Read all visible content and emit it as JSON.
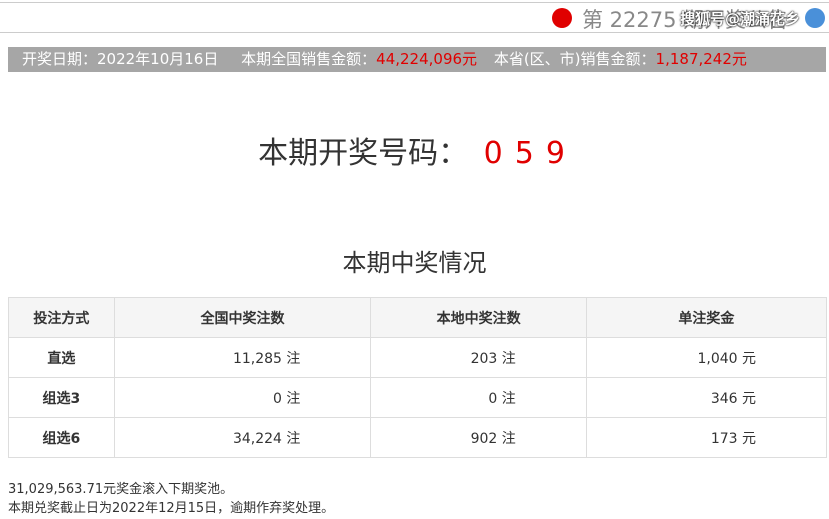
{
  "header": {
    "title": "第 22275 期开奖公告",
    "watermark": "搜狐号@潮涌花乡"
  },
  "info": {
    "date": "开奖日期：2022年10月16日",
    "national_label": "本期全国销售金额：",
    "national_amount": "44,224,096元",
    "province_label": "本省(区、市)销售金额：",
    "province_amount": "1,187,242元"
  },
  "draw": {
    "label": "本期开奖号码：",
    "numbers": [
      "0",
      "5",
      "9"
    ]
  },
  "section_title": "本期中奖情况",
  "table": {
    "header": [
      "投注方式",
      "全国中奖注数",
      "本地中奖注数",
      "单注奖金"
    ],
    "rows": [
      [
        "直选",
        "11,285 注",
        "203 注",
        "1,040 元"
      ],
      [
        "组选3",
        "0 注",
        "0 注",
        "346 元"
      ],
      [
        "组选6",
        "34,224 注",
        "902 注",
        "173 元"
      ]
    ]
  },
  "footer": [
    "31,029,563.71元奖金滚入下期奖池。",
    "本期兑奖截止日为2022年12月15日，逾期作弃奖处理。"
  ]
}
